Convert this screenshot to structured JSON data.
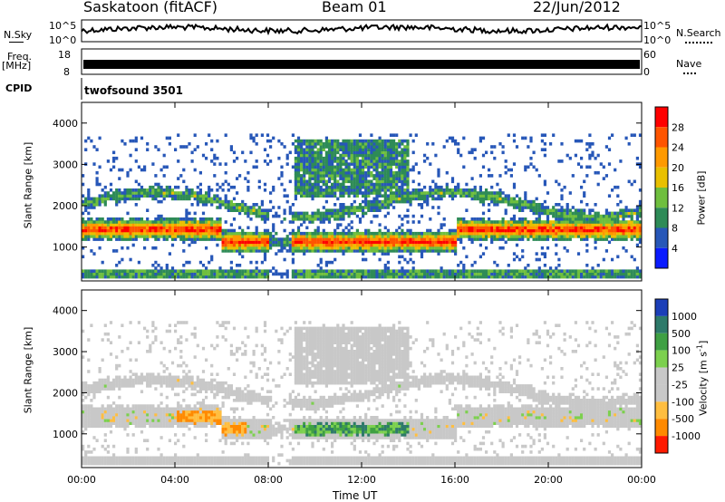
{
  "header": {
    "station": "Saskatoon (fitACF)",
    "beam": "Beam 01",
    "date": "22/Jun/2012"
  },
  "strip_panels": {
    "nsky_label": "N.Sky",
    "nsky_ticks": [
      "10^5",
      "10^0"
    ],
    "freq_label": "Freq.",
    "freq_unit": "[MHz]",
    "freq_ticks": [
      "18",
      "8"
    ],
    "nsearch_label": "N.Search",
    "nsearch_ticks": [
      "10^5",
      "10^0"
    ],
    "nave_label": "Nave",
    "nave_ticks": [
      "60",
      "0"
    ],
    "cpid_label": "CPID",
    "cpid_value": "twofsound 3501"
  },
  "chart_data": [
    {
      "type": "heatmap",
      "title": "",
      "ylabel": "Slant Range [km]",
      "xlabel": "",
      "ylim": [
        180,
        4500
      ],
      "y_ticks": [
        1000,
        2000,
        3000,
        4000
      ],
      "x_ticks": [
        "00:00",
        "04:00",
        "08:00",
        "12:00",
        "16:00",
        "20:00",
        "00:00"
      ],
      "colorbar": {
        "label": "Power [dB]",
        "ticks": [
          "28",
          "24",
          "20",
          "16",
          "12",
          "8",
          "4"
        ],
        "colors": [
          "#ff0000",
          "#ff5500",
          "#ff9a00",
          "#e9c000",
          "#6fbf3e",
          "#2e8b57",
          "#2757b8",
          "#0a1bff"
        ]
      }
    },
    {
      "type": "heatmap",
      "title": "",
      "ylabel": "Slant Range [km]",
      "xlabel": "Time UT",
      "ylim": [
        180,
        4500
      ],
      "y_ticks": [
        1000,
        2000,
        3000,
        4000
      ],
      "x_ticks": [
        "00:00",
        "04:00",
        "08:00",
        "12:00",
        "16:00",
        "20:00",
        "00:00"
      ],
      "colorbar": {
        "label": "Velocity [m s",
        "label_sup": "-1",
        "label_end": "]",
        "ticks": [
          "1000",
          "500",
          "100",
          "25",
          "-25",
          "-100",
          "-500",
          "-1000"
        ],
        "colors": [
          "#1c3fb8",
          "#2e7a6a",
          "#3fa043",
          "#7cd04e",
          "#c8c8c8",
          "#c8c8c8",
          "#ffbe40",
          "#ff8a00",
          "#ff1a00"
        ]
      }
    }
  ]
}
